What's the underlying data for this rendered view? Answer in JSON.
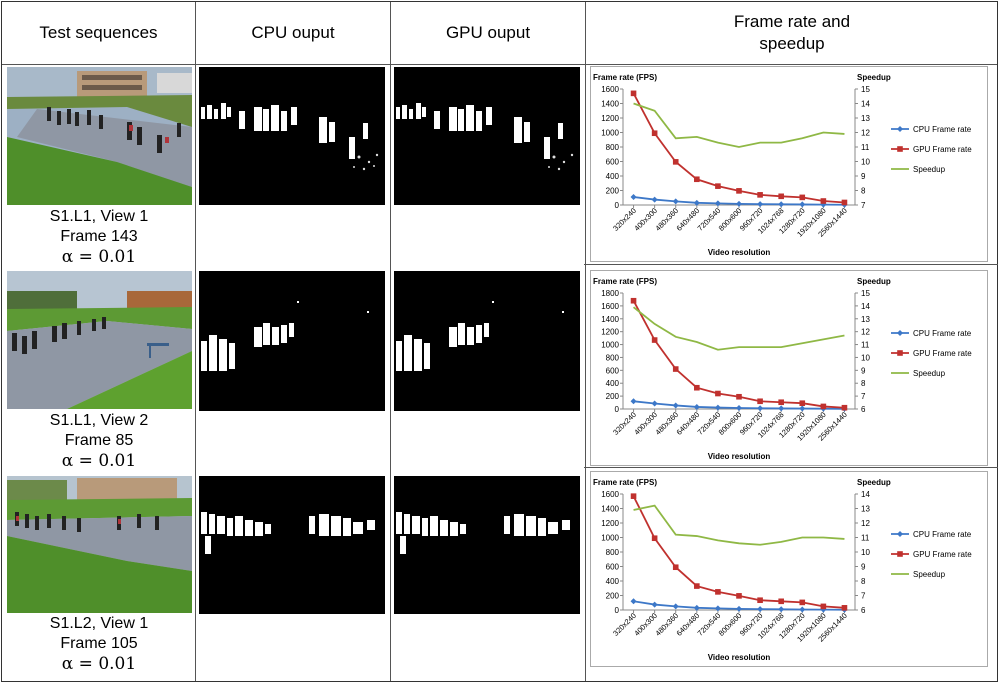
{
  "header": {
    "col1": "Test sequences",
    "col2": "CPU ouput",
    "col3": "GPU ouput",
    "col4_line1": "Frame rate and",
    "col4_line2": "speedup"
  },
  "rows": [
    {
      "seq": "S1.L1, View 1",
      "frame": "Frame 143",
      "alpha": "α = 0.01"
    },
    {
      "seq": "S1.L1, View 2",
      "frame": "Frame 85",
      "alpha": "α = 0.01"
    },
    {
      "seq": "S1.L2, View 1",
      "frame": "Frame 105",
      "alpha": "α = 0.01"
    }
  ],
  "colors": {
    "cpu": "#3d78c8",
    "gpu": "#c0312e",
    "speedup": "#8fb845",
    "grass": "#4f8f2a",
    "road": "#8f97a4"
  },
  "chart_data": [
    {
      "type": "line",
      "ylabel": "Frame rate (FPS)",
      "y2label": "Speedup",
      "xlabel": "Video resolution",
      "categories": [
        "320x240",
        "400x300",
        "480x360",
        "640x480",
        "720x540",
        "800x600",
        "960x720",
        "1024x768",
        "1280x720",
        "1920x1080",
        "2560x1440"
      ],
      "ylim": [
        0,
        1600
      ],
      "yticks": [
        0,
        200,
        400,
        600,
        800,
        1000,
        1200,
        1400,
        1600
      ],
      "y2lim": [
        7,
        15
      ],
      "y2ticks": [
        7,
        8,
        9,
        10,
        11,
        12,
        13,
        14,
        15
      ],
      "series": [
        {
          "name": "CPU Frame rate",
          "axis": "left",
          "values": [
            110,
            75,
            50,
            30,
            22,
            16,
            12,
            10,
            8,
            5,
            3
          ]
        },
        {
          "name": "GPU Frame rate",
          "axis": "left",
          "values": [
            1540,
            990,
            595,
            355,
            260,
            195,
            140,
            120,
            105,
            55,
            35
          ]
        },
        {
          "name": "Speedup",
          "axis": "right",
          "values": [
            14.0,
            13.5,
            11.6,
            11.7,
            11.3,
            11.0,
            11.3,
            11.3,
            11.6,
            12.0,
            11.9
          ]
        }
      ],
      "legend": "right"
    },
    {
      "type": "line",
      "ylabel": "Frame rate (FPS)",
      "y2label": "Speedup",
      "xlabel": "Video resolution",
      "categories": [
        "320x240",
        "400x300",
        "480x360",
        "640x480",
        "720x540",
        "800x600",
        "960x720",
        "1024x768",
        "1280x720",
        "1920x1080",
        "2560x1440"
      ],
      "ylim": [
        0,
        1800
      ],
      "yticks": [
        0,
        200,
        400,
        600,
        800,
        1000,
        1200,
        1400,
        1600,
        1800
      ],
      "y2lim": [
        6,
        15
      ],
      "y2ticks": [
        6,
        7,
        8,
        9,
        10,
        11,
        12,
        13,
        14,
        15
      ],
      "series": [
        {
          "name": "CPU Frame rate",
          "axis": "left",
          "values": [
            120,
            85,
            55,
            32,
            22,
            15,
            12,
            9,
            7,
            5,
            3
          ]
        },
        {
          "name": "GPU Frame rate",
          "axis": "left",
          "values": [
            1680,
            1070,
            620,
            330,
            240,
            190,
            120,
            105,
            90,
            40,
            20
          ]
        },
        {
          "name": "Speedup",
          "axis": "right",
          "values": [
            13.9,
            12.6,
            11.6,
            11.2,
            10.6,
            10.8,
            10.8,
            10.8,
            11.1,
            11.4,
            11.7
          ]
        }
      ],
      "legend": "right"
    },
    {
      "type": "line",
      "ylabel": "Frame rate (FPS)",
      "y2label": "Speedup",
      "xlabel": "Video resolution",
      "categories": [
        "320x240",
        "400x300",
        "480x360",
        "640x480",
        "720x540",
        "800x600",
        "960x720",
        "1024x768",
        "1280x720",
        "1920x1080",
        "2560x1440"
      ],
      "ylim": [
        0,
        1600
      ],
      "yticks": [
        0,
        200,
        400,
        600,
        800,
        1000,
        1200,
        1400,
        1600
      ],
      "y2lim": [
        6,
        14
      ],
      "y2ticks": [
        6,
        7,
        8,
        9,
        10,
        11,
        12,
        13,
        14
      ],
      "series": [
        {
          "name": "CPU Frame rate",
          "axis": "left",
          "values": [
            120,
            75,
            50,
            30,
            22,
            15,
            12,
            10,
            7,
            5,
            3
          ]
        },
        {
          "name": "GPU Frame rate",
          "axis": "left",
          "values": [
            1570,
            990,
            590,
            330,
            250,
            195,
            135,
            120,
            105,
            50,
            30
          ]
        },
        {
          "name": "Speedup",
          "axis": "right",
          "values": [
            12.9,
            13.2,
            11.2,
            11.1,
            10.8,
            10.6,
            10.5,
            10.7,
            11.0,
            11.0,
            10.9
          ]
        }
      ],
      "legend": "right"
    }
  ]
}
